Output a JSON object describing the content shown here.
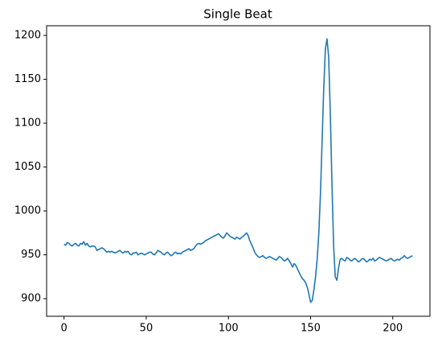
{
  "chart_data": {
    "type": "line",
    "title": "Single Beat",
    "x": [
      0,
      1,
      2,
      3,
      4,
      5,
      6,
      7,
      8,
      9,
      10,
      11,
      12,
      13,
      14,
      15,
      16,
      17,
      18,
      19,
      20,
      21,
      22,
      23,
      24,
      25,
      26,
      27,
      28,
      29,
      30,
      31,
      32,
      33,
      34,
      35,
      36,
      37,
      38,
      39,
      40,
      41,
      42,
      43,
      44,
      45,
      46,
      47,
      48,
      49,
      50,
      51,
      52,
      53,
      54,
      55,
      56,
      57,
      58,
      59,
      60,
      61,
      62,
      63,
      64,
      65,
      66,
      67,
      68,
      69,
      70,
      71,
      72,
      73,
      74,
      75,
      76,
      77,
      78,
      79,
      80,
      81,
      82,
      83,
      84,
      85,
      86,
      87,
      88,
      89,
      90,
      91,
      92,
      93,
      94,
      95,
      96,
      97,
      98,
      99,
      100,
      101,
      102,
      103,
      104,
      105,
      106,
      107,
      108,
      109,
      110,
      111,
      112,
      113,
      114,
      115,
      116,
      117,
      118,
      119,
      120,
      121,
      122,
      123,
      124,
      125,
      126,
      127,
      128,
      129,
      130,
      131,
      132,
      133,
      134,
      135,
      136,
      137,
      138,
      139,
      140,
      141,
      142,
      143,
      144,
      145,
      146,
      147,
      148,
      149,
      150,
      151,
      152,
      153,
      154,
      155,
      156,
      157,
      158,
      159,
      160,
      161,
      162,
      163,
      164,
      165,
      166,
      167,
      168,
      169,
      170,
      171,
      172,
      173,
      174,
      175,
      176,
      177,
      178,
      179,
      180,
      181,
      182,
      183,
      184,
      185,
      186,
      187,
      188,
      189,
      190,
      191,
      192,
      193,
      194,
      195,
      196,
      197,
      198,
      199,
      200,
      201,
      202,
      203,
      204,
      205,
      206,
      207,
      208,
      209,
      210,
      211,
      212
    ],
    "values": [
      962,
      961,
      964,
      963,
      961,
      960,
      962,
      963,
      961,
      960,
      963,
      962,
      965,
      961,
      963,
      960,
      959,
      960,
      960,
      959,
      955,
      956,
      957,
      958,
      957,
      955,
      953,
      954,
      953,
      954,
      953,
      952,
      953,
      954,
      955,
      953,
      952,
      954,
      953,
      954,
      951,
      950,
      952,
      952,
      953,
      950,
      951,
      952,
      951,
      950,
      951,
      952,
      953,
      953,
      951,
      950,
      952,
      955,
      954,
      953,
      951,
      950,
      952,
      953,
      951,
      949,
      950,
      952,
      953,
      951,
      952,
      951,
      953,
      954,
      955,
      956,
      957,
      955,
      956,
      957,
      960,
      962,
      963,
      962,
      963,
      964,
      966,
      967,
      968,
      969,
      970,
      971,
      972,
      973,
      974,
      972,
      970,
      969,
      972,
      975,
      973,
      971,
      970,
      969,
      968,
      970,
      969,
      968,
      970,
      971,
      973,
      975,
      972,
      966,
      962,
      958,
      953,
      950,
      948,
      947,
      948,
      949,
      947,
      946,
      947,
      948,
      947,
      946,
      945,
      944,
      946,
      948,
      947,
      945,
      943,
      944,
      946,
      943,
      940,
      936,
      940,
      938,
      934,
      930,
      926,
      923,
      921,
      918,
      913,
      905,
      896,
      898,
      910,
      925,
      945,
      975,
      1020,
      1080,
      1140,
      1185,
      1196,
      1175,
      1110,
      1030,
      960,
      925,
      921,
      935,
      945,
      946,
      944,
      943,
      947,
      946,
      944,
      943,
      945,
      946,
      944,
      942,
      943,
      945,
      946,
      944,
      942,
      943,
      945,
      944,
      946,
      943,
      944,
      946,
      947,
      946,
      945,
      944,
      943,
      944,
      945,
      946,
      944,
      943,
      944,
      945,
      944,
      946,
      947,
      949,
      947,
      946,
      947,
      948,
      949
    ],
    "color": "#1f77b4",
    "xlim": [
      -10.6,
      222.6
    ],
    "xticks": [
      0,
      50,
      100,
      150,
      200
    ],
    "ylim": [
      880,
      1211
    ],
    "yticks": [
      900,
      950,
      1000,
      1050,
      1100,
      1150,
      1200
    ]
  }
}
